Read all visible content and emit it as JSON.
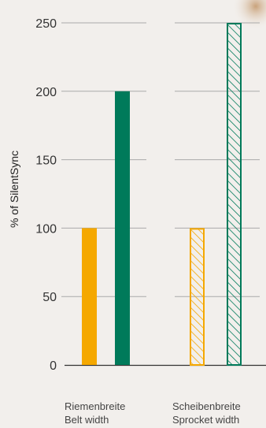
{
  "chart_data": {
    "type": "bar",
    "ylabel": "% of SilentSync",
    "ylim": [
      0,
      250
    ],
    "yticks": [
      0,
      50,
      100,
      150,
      200,
      250
    ],
    "grid": true,
    "categories": [
      {
        "line1": "Riemenbreite",
        "line2": "Belt width"
      },
      {
        "line1": "Scheibenbreite",
        "line2": "Sprocket width"
      }
    ],
    "series": [
      {
        "values": [
          100,
          100
        ],
        "color": "#f5a800",
        "fills": [
          "solid",
          "hatched"
        ]
      },
      {
        "values": [
          200,
          250
        ],
        "color": "#007a5a",
        "fills": [
          "solid",
          "hatched"
        ]
      }
    ]
  }
}
